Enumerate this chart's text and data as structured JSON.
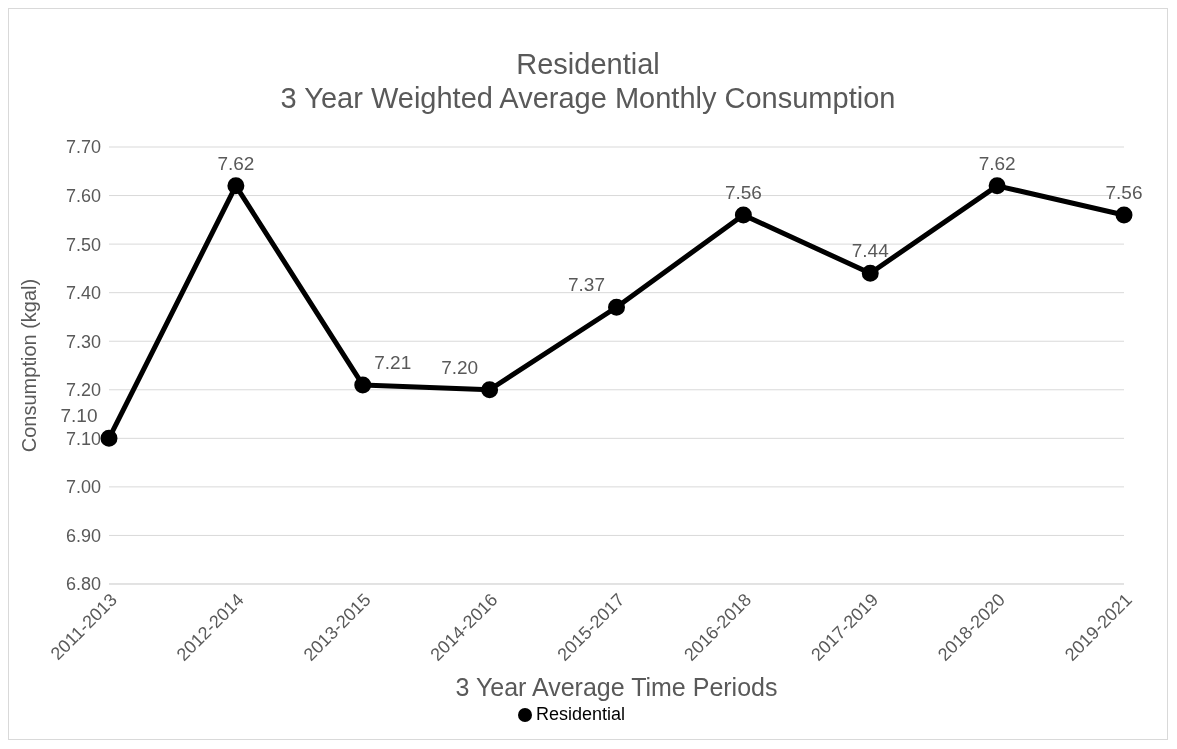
{
  "chart_data": {
    "type": "line",
    "title": "Residential\n3 Year Weighted Average Monthly Consumption",
    "xlabel": "3 Year Average Time Periods",
    "ylabel": "Consumption (kgal)",
    "categories": [
      "2011-2013",
      "2012-2014",
      "2013-2015",
      "2014-2016",
      "2015-2017",
      "2016-2018",
      "2017-2019",
      "2018-2020",
      "2019-2021"
    ],
    "series": [
      {
        "name": "Residential",
        "color": "#000000",
        "values": [
          7.1,
          7.62,
          7.21,
          7.2,
          7.37,
          7.56,
          7.44,
          7.62,
          7.56
        ],
        "value_labels": [
          "7.10",
          "7.62",
          "7.21",
          "7.20",
          "7.37",
          "7.56",
          "7.44",
          "7.62",
          "7.56"
        ]
      }
    ],
    "ylim": [
      6.8,
      7.7
    ],
    "yticks": [
      {
        "value": 6.8,
        "label": "6.80"
      },
      {
        "value": 6.9,
        "label": "6.90"
      },
      {
        "value": 7.0,
        "label": "7.00"
      },
      {
        "value": 7.1,
        "label": "7.10"
      },
      {
        "value": 7.2,
        "label": "7.20"
      },
      {
        "value": 7.3,
        "label": "7.30"
      },
      {
        "value": 7.4,
        "label": "7.40"
      },
      {
        "value": 7.5,
        "label": "7.50"
      },
      {
        "value": 7.6,
        "label": "7.60"
      },
      {
        "value": 7.7,
        "label": "7.70"
      }
    ],
    "grid": "y",
    "legend": "bottom",
    "marker": "circle",
    "line_style": "solid"
  }
}
